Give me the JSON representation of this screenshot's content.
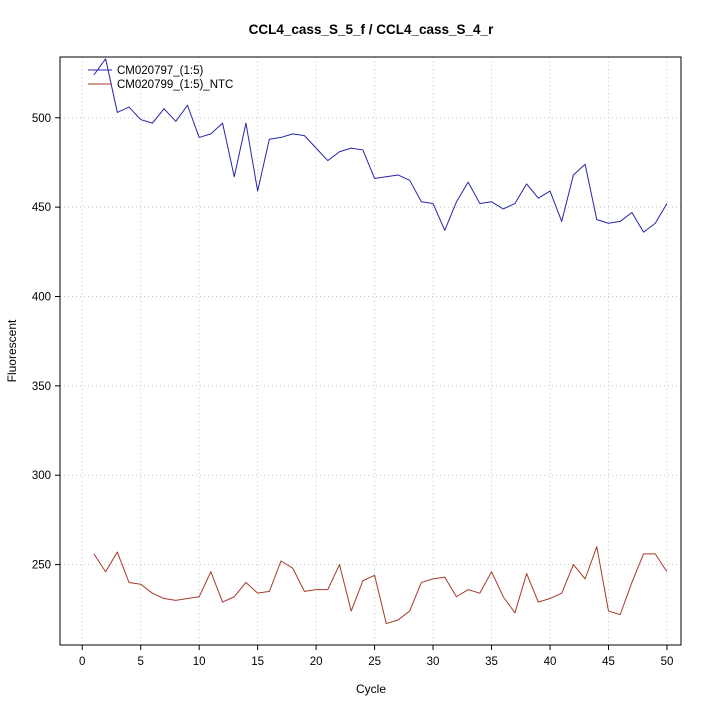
{
  "chart_data": {
    "type": "line",
    "title": "CCL4_cass_S_5_f / CCL4_cass_S_4_r",
    "xlabel": "Cycle",
    "ylabel": "Fluorescent",
    "xlim": [
      -1.9,
      51.2
    ],
    "ylim": [
      205,
      534
    ],
    "x_ticks": [
      0,
      5,
      10,
      15,
      20,
      25,
      30,
      35,
      40,
      45,
      50
    ],
    "y_ticks": [
      250,
      300,
      350,
      400,
      450,
      500
    ],
    "grid": true,
    "grid_style": "dotted",
    "legend_position": "top-left",
    "x": [
      1,
      2,
      3,
      4,
      5,
      6,
      7,
      8,
      9,
      10,
      11,
      12,
      13,
      14,
      15,
      16,
      17,
      18,
      19,
      20,
      21,
      22,
      23,
      24,
      25,
      26,
      27,
      28,
      29,
      30,
      31,
      32,
      33,
      34,
      35,
      36,
      37,
      38,
      39,
      40,
      41,
      42,
      43,
      44,
      45,
      46,
      47,
      48,
      49,
      50
    ],
    "series": [
      {
        "name": "CM020797_(1:5)",
        "color": "#2626a8",
        "values": [
          524,
          533,
          503,
          506,
          499,
          497,
          505,
          498,
          507,
          489,
          491,
          497,
          467,
          497,
          459,
          488,
          489,
          491,
          490,
          483,
          476,
          481,
          483,
          482,
          466,
          467,
          468,
          465,
          453,
          452,
          437,
          453,
          464,
          452,
          453,
          449,
          452,
          463,
          455,
          459,
          442,
          468,
          474,
          443,
          441,
          442,
          447,
          436,
          441,
          452
        ]
      },
      {
        "name": "CM020799_(1:5)_NTC",
        "color": "#a63a28",
        "values": [
          256,
          246,
          257,
          240,
          239,
          234,
          231,
          230,
          231,
          232,
          246,
          229,
          232,
          240,
          234,
          235,
          252,
          248,
          235,
          236,
          236,
          250,
          224,
          241,
          244,
          217,
          219,
          224,
          240,
          242,
          243,
          232,
          236,
          234,
          246,
          232,
          223,
          245,
          229,
          231,
          234,
          250,
          242,
          260,
          224,
          222,
          240,
          256,
          256,
          246
        ]
      }
    ],
    "colors": {
      "axis": "#000000",
      "grid": "#c8c8c8",
      "background": "#ffffff"
    }
  }
}
